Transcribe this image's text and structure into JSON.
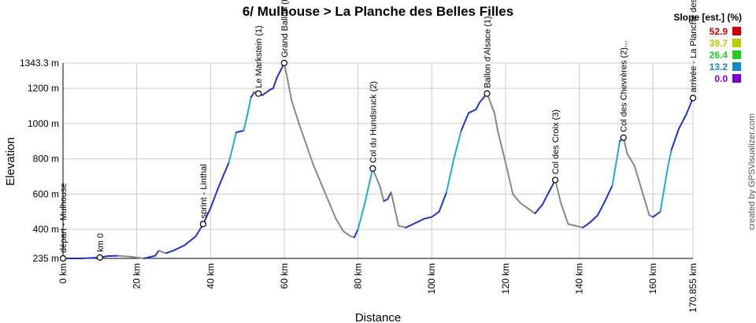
{
  "chart_data": {
    "type": "line",
    "title": "6/ Mulhouse > La Planche des Belles Filles",
    "xlabel": "Distance",
    "ylabel": "Elevation",
    "xlim": [
      0,
      170.855
    ],
    "ylim": [
      235,
      1343.3
    ],
    "x_ticks": [
      {
        "value": 0,
        "label": "0 km"
      },
      {
        "value": 20,
        "label": "20 km"
      },
      {
        "value": 40,
        "label": "40 km"
      },
      {
        "value": 60,
        "label": "60 km"
      },
      {
        "value": 80,
        "label": "80 km"
      },
      {
        "value": 100,
        "label": "100 km"
      },
      {
        "value": 120,
        "label": "120 km"
      },
      {
        "value": 140,
        "label": "140 km"
      },
      {
        "value": 160,
        "label": "160 km"
      },
      {
        "value": 170.855,
        "label": "170.855 km"
      }
    ],
    "y_ticks": [
      {
        "value": 235,
        "label": "235 m"
      },
      {
        "value": 400,
        "label": "400 m"
      },
      {
        "value": 600,
        "label": "600 m"
      },
      {
        "value": 800,
        "label": "800 m"
      },
      {
        "value": 1000,
        "label": "1000 m"
      },
      {
        "value": 1200,
        "label": "1200 m"
      },
      {
        "value": 1343.3,
        "label": "1343.3 m"
      }
    ],
    "grid": true,
    "series": [
      {
        "x": [
          0,
          5,
          10,
          12,
          15,
          18,
          22,
          25,
          26,
          27,
          28,
          30,
          33,
          36,
          38,
          40,
          42,
          45,
          47,
          49,
          50,
          51,
          52,
          53,
          54,
          56,
          57,
          58,
          59,
          60,
          61,
          62,
          64,
          66,
          68,
          70,
          72,
          74,
          76,
          78,
          79,
          80,
          82,
          84,
          86,
          87,
          88,
          89,
          91,
          93,
          95,
          98,
          100,
          102,
          104,
          106,
          108,
          110,
          112,
          113,
          115,
          117,
          118,
          120,
          122,
          124,
          126,
          128,
          130,
          132,
          133.5,
          135,
          137,
          139,
          141,
          143,
          145,
          147,
          149,
          151,
          152,
          153,
          155,
          157,
          159,
          160,
          162,
          164,
          165,
          167,
          169,
          170.855
        ],
        "y": [
          235,
          235,
          240,
          248,
          250,
          245,
          235,
          250,
          280,
          270,
          265,
          280,
          310,
          360,
          430,
          520,
          630,
          780,
          950,
          960,
          1050,
          1150,
          1180,
          1170,
          1160,
          1190,
          1200,
          1260,
          1300,
          1343.3,
          1240,
          1130,
          1000,
          880,
          760,
          660,
          560,
          460,
          390,
          360,
          355,
          400,
          560,
          745,
          640,
          560,
          570,
          610,
          420,
          410,
          430,
          460,
          470,
          500,
          610,
          800,
          960,
          1060,
          1080,
          1120,
          1170,
          1060,
          950,
          780,
          600,
          550,
          520,
          490,
          540,
          620,
          680,
          550,
          430,
          420,
          410,
          440,
          480,
          560,
          650,
          900,
          920,
          830,
          760,
          620,
          480,
          470,
          500,
          750,
          850,
          970,
          1050,
          1145
        ]
      }
    ],
    "waypoints": [
      {
        "x": 0,
        "y": 235,
        "label": "départ - Mulhouse"
      },
      {
        "x": 10,
        "y": 240,
        "label": "km 0"
      },
      {
        "x": 38,
        "y": 430,
        "label": "sprint - Linthal"
      },
      {
        "x": 53,
        "y": 1170,
        "label": "Le Markstein (1)"
      },
      {
        "x": 60,
        "y": 1343.3,
        "label": "Grand Ballon (H)"
      },
      {
        "x": 84,
        "y": 745,
        "label": "Col du Hundsruck (2)"
      },
      {
        "x": 115,
        "y": 1170,
        "label": "Ballon d'Alsace (1)"
      },
      {
        "x": 133.5,
        "y": 680,
        "label": "Col des Croix (3)"
      },
      {
        "x": 152,
        "y": 920,
        "label": "Col des Chevrères (2)..."
      },
      {
        "x": 170.855,
        "y": 1145,
        "label": "arrivée - La Planche des Belles Filles"
      }
    ],
    "legend": {
      "title": "Slope [est.] (%)",
      "placement": "top-right",
      "entries": [
        {
          "label": "52.9",
          "color": "#cc0000"
        },
        {
          "label": "39.7",
          "color": "#b8cc00"
        },
        {
          "label": "26.4",
          "color": "#22cc22"
        },
        {
          "label": "13.2",
          "color": "#1188cc"
        },
        {
          "label": "0.0",
          "color": "#7a00cc"
        }
      ]
    },
    "colors": {
      "climb": "#2233cc",
      "steep": "#22aacc",
      "descent": "#888888",
      "grid": "#cccccc"
    }
  },
  "credit": "created by GPSVisualizer.com"
}
